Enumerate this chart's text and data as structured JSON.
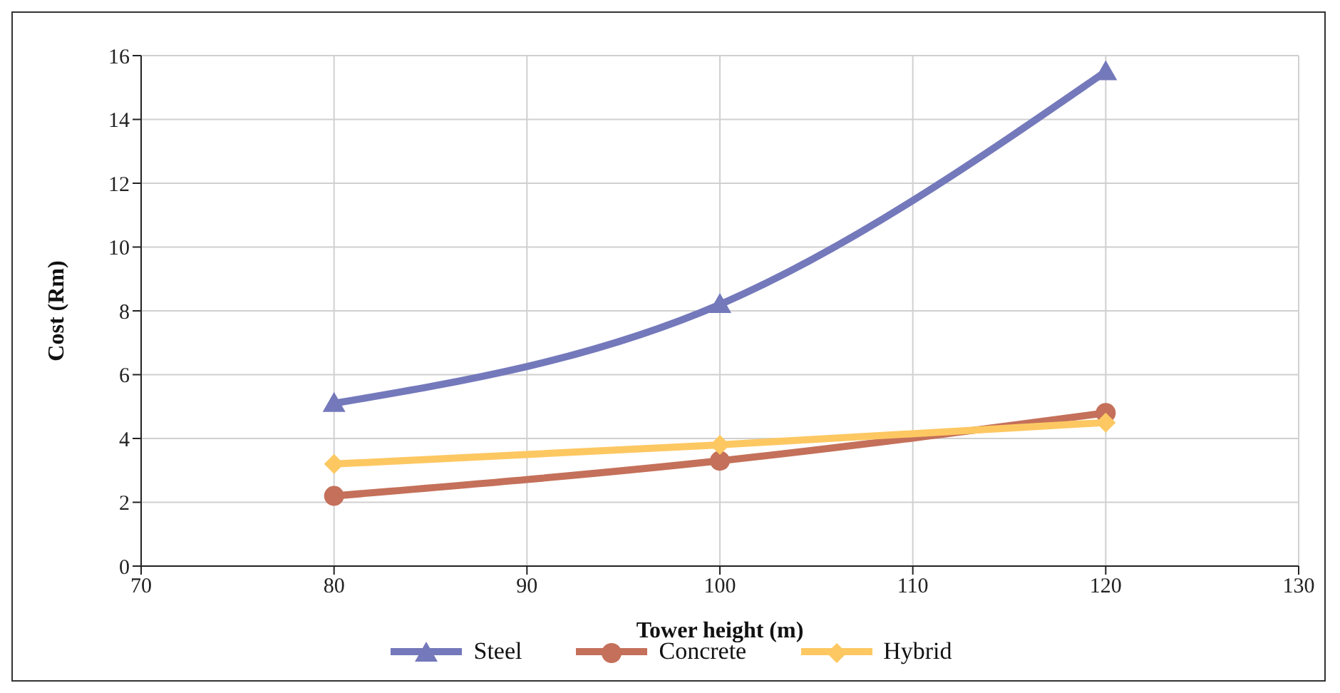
{
  "chart_data": {
    "type": "line",
    "xlabel": "Tower height (m)",
    "ylabel": "Cost (Rm)",
    "x": [
      80,
      100,
      120
    ],
    "series": [
      {
        "name": "Steel",
        "color": "#7479bb",
        "marker": "triangle",
        "values": [
          5.1,
          8.2,
          15.5
        ]
      },
      {
        "name": "Concrete",
        "color": "#c4705a",
        "marker": "circle",
        "values": [
          2.2,
          3.3,
          4.8
        ]
      },
      {
        "name": "Hybrid",
        "color": "#fdc862",
        "marker": "diamond",
        "values": [
          3.2,
          3.8,
          4.5
        ]
      }
    ],
    "xlim": [
      70,
      130
    ],
    "xticks": [
      70,
      80,
      90,
      100,
      110,
      120,
      130
    ],
    "ylim": [
      0,
      16
    ],
    "yticks": [
      0,
      2,
      4,
      6,
      8,
      10,
      12,
      14,
      16
    ],
    "grid": true,
    "legend": "bottom",
    "line_style": "solid"
  }
}
